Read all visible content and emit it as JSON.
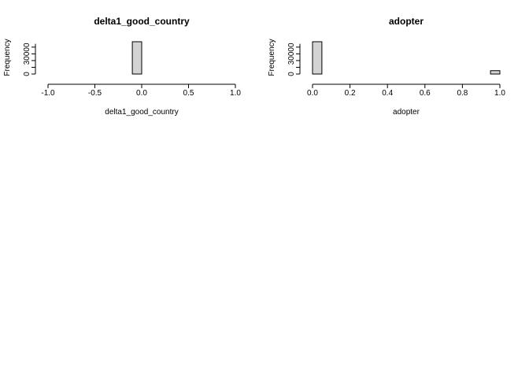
{
  "chart_data": [
    {
      "type": "bar",
      "title": "delta1_good_country",
      "xlabel": "delta1_good_country",
      "ylabel": "Frequency",
      "xlim": [
        -1.0,
        1.0
      ],
      "ylim": [
        0,
        48000
      ],
      "x_ticks": [
        "-1.0",
        "-0.5",
        "0.0",
        "0.5",
        "1.0"
      ],
      "y_ticks": [
        "0",
        "30000"
      ],
      "bin_edges": [
        -1.0,
        -0.9,
        -0.8,
        -0.7,
        -0.6,
        -0.5,
        -0.4,
        -0.3,
        -0.2,
        -0.1,
        0.0,
        0.1,
        0.2,
        0.3,
        0.4,
        0.5,
        0.6,
        0.7,
        0.8,
        0.9,
        1.0
      ],
      "values": [
        0,
        0,
        0,
        0,
        0,
        0,
        0,
        0,
        0,
        48000,
        0,
        0,
        0,
        0,
        0,
        0,
        0,
        0,
        0,
        0
      ],
      "bar_color": "#d3d3d3",
      "grid": false
    },
    {
      "type": "bar",
      "title": "adopter",
      "xlabel": "adopter",
      "ylabel": "Frequency",
      "xlim": [
        0.0,
        1.0
      ],
      "ylim": [
        0,
        48000
      ],
      "x_ticks": [
        "0.0",
        "0.2",
        "0.4",
        "0.6",
        "0.8",
        "1.0"
      ],
      "y_ticks": [
        "0",
        "30000"
      ],
      "bin_edges": [
        0.0,
        0.05,
        0.1,
        0.15,
        0.2,
        0.25,
        0.3,
        0.35,
        0.4,
        0.45,
        0.5,
        0.55,
        0.6,
        0.65,
        0.7,
        0.75,
        0.8,
        0.85,
        0.9,
        0.95,
        1.0
      ],
      "values": [
        48000,
        0,
        0,
        0,
        0,
        0,
        0,
        0,
        0,
        0,
        0,
        0,
        0,
        0,
        0,
        0,
        0,
        0,
        0,
        5000
      ],
      "bar_color": "#d3d3d3",
      "grid": false
    }
  ]
}
